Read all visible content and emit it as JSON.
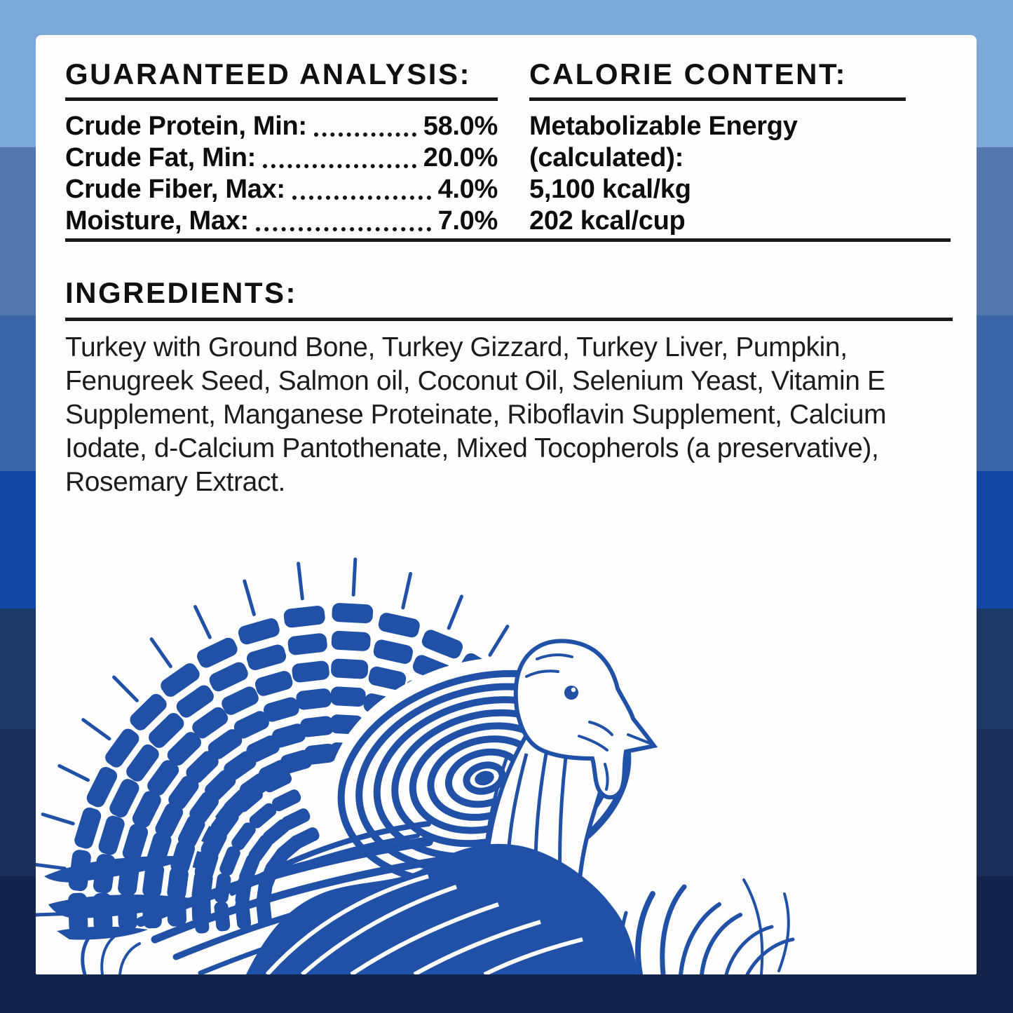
{
  "background": {
    "stripes": [
      {
        "name": "sky-light-blue",
        "color": "#7ca8da",
        "from": 0,
        "to": 210
      },
      {
        "name": "slate-blue",
        "color": "#5478ae",
        "from": 210,
        "to": 450
      },
      {
        "name": "medium-blue",
        "color": "#3c64a9",
        "from": 450,
        "to": 672
      },
      {
        "name": "royal-blue",
        "color": "#1548a6",
        "from": 672,
        "to": 868
      },
      {
        "name": "dark-navy",
        "color": "#1c3866",
        "from": 868,
        "to": 1040
      },
      {
        "name": "darker-navy",
        "color": "#1c2f58",
        "from": 1040,
        "to": 1250
      },
      {
        "name": "darkest-navy",
        "color": "#13234a",
        "from": 1250,
        "to": 1445
      }
    ]
  },
  "guaranteed_analysis": {
    "title": "GUARANTEED ANALYSIS:",
    "rows": [
      {
        "label": "Crude Protein, Min:",
        "value": "58.0%"
      },
      {
        "label": "Crude Fat, Min:",
        "value": "20.0%"
      },
      {
        "label": "Crude Fiber, Max:",
        "value": "4.0%"
      },
      {
        "label": "Moisture, Max:",
        "value": "7.0%"
      }
    ]
  },
  "calorie_content": {
    "title": "CALORIE CONTENT:",
    "lines": [
      "Metabolizable Energy",
      "(calculated):",
      "5,100 kcal/kg",
      "202 kcal/cup"
    ]
  },
  "ingredients": {
    "title": "INGREDIENTS:",
    "text": "Turkey with Ground Bone, Turkey Gizzard, Turkey Liver, Pumpkin, Fenugreek Seed, Salmon oil, Coconut Oil, Selenium Yeast, Vitamin E Supplement, Manganese Proteinate, Riboflavin Supplement, Calcium Iodate, d-Calcium Pantothenate, Mixed Tocopherols (a preservative), Rosemary Extract."
  },
  "illustration": {
    "name": "turkey-engraving",
    "color": "#2151a7"
  },
  "colors": {
    "card_background": "#fefefe",
    "text": "#0d0d0d",
    "rule": "#1a1a1a",
    "turkey_blue": "#2151a7"
  }
}
